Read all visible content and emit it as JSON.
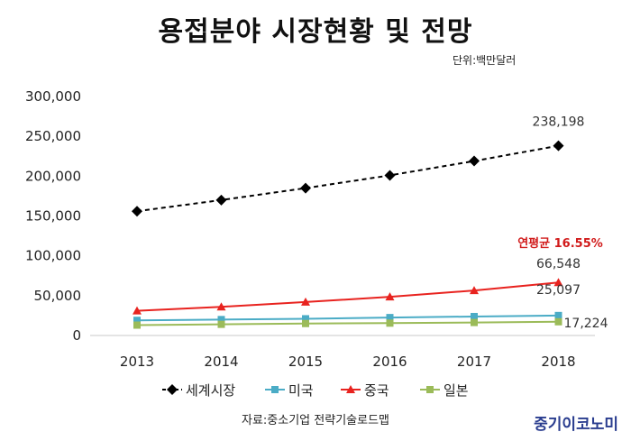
{
  "chart_data": {
    "type": "line",
    "title": "용접분야 시장현황 및 전망",
    "subtitle": "단위:백만달러",
    "x": [
      "2013",
      "2014",
      "2015",
      "2016",
      "2017",
      "2018"
    ],
    "ylim": [
      0,
      300000
    ],
    "yticks": [
      "300,000",
      "250,000",
      "200,000",
      "150,000",
      "100,000",
      "50,000",
      "0"
    ],
    "grid": false,
    "legend": "bottom",
    "series": [
      {
        "name": "세계시장",
        "color": "#000000",
        "dash": true,
        "marker": "diamond",
        "values": [
          156000,
          170000,
          185000,
          201000,
          219000,
          238198
        ]
      },
      {
        "name": "미국",
        "color": "#4bacc6",
        "dash": false,
        "marker": "square",
        "values": [
          19000,
          20000,
          21000,
          22500,
          23800,
          25097
        ]
      },
      {
        "name": "중국",
        "color": "#e8231f",
        "dash": false,
        "marker": "triangle",
        "values": [
          31000,
          36000,
          42000,
          48500,
          56500,
          66548
        ]
      },
      {
        "name": "일본",
        "color": "#9bbb59",
        "dash": false,
        "marker": "square",
        "values": [
          13000,
          14000,
          15000,
          15500,
          16300,
          17224
        ]
      }
    ],
    "data_labels": [
      {
        "series": 0,
        "text": "238,198"
      },
      {
        "series": 2,
        "text": "66,548"
      },
      {
        "series": 1,
        "text": "25,097"
      },
      {
        "series": 3,
        "text": "17,224"
      }
    ],
    "annotation": "연평균 16.55%"
  },
  "source": "자료:중소기업 전략기술로드맵",
  "brand": "중기이코노미"
}
